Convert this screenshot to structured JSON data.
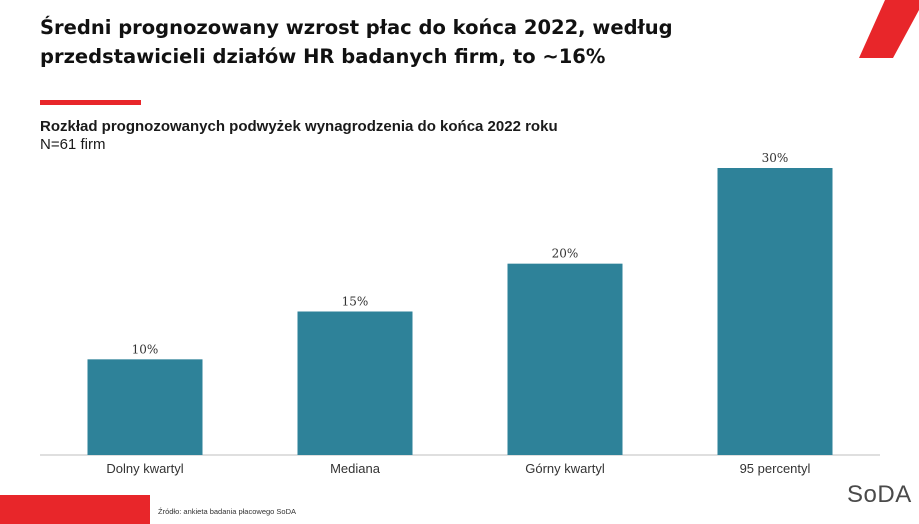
{
  "header": {
    "title": "Średni prognozowany wzrost płac do końca 2022, według przedstawicieli działów HR badanych firm, to ~16%",
    "accent_color": "#e8262a"
  },
  "chart_data": {
    "type": "bar",
    "title": "Rozkład prognozowanych podwyżek wynagrodzenia do końca 2022 roku",
    "subtitle": "N=61 firm",
    "categories": [
      "Dolny kwartyl",
      "Mediana",
      "Górny kwartyl",
      "95 percentyl"
    ],
    "values": [
      10,
      15,
      20,
      30
    ],
    "value_labels": [
      "10%",
      "15%",
      "20%",
      "30%"
    ],
    "xlabel": "",
    "ylabel": "",
    "ylim": [
      0,
      30
    ],
    "grid": false,
    "legend": "none",
    "bar_color": "#2e8299"
  },
  "footer": {
    "source": "Źródło: ankieta badania płacowego SoDA",
    "logo_text": "SoDA"
  }
}
